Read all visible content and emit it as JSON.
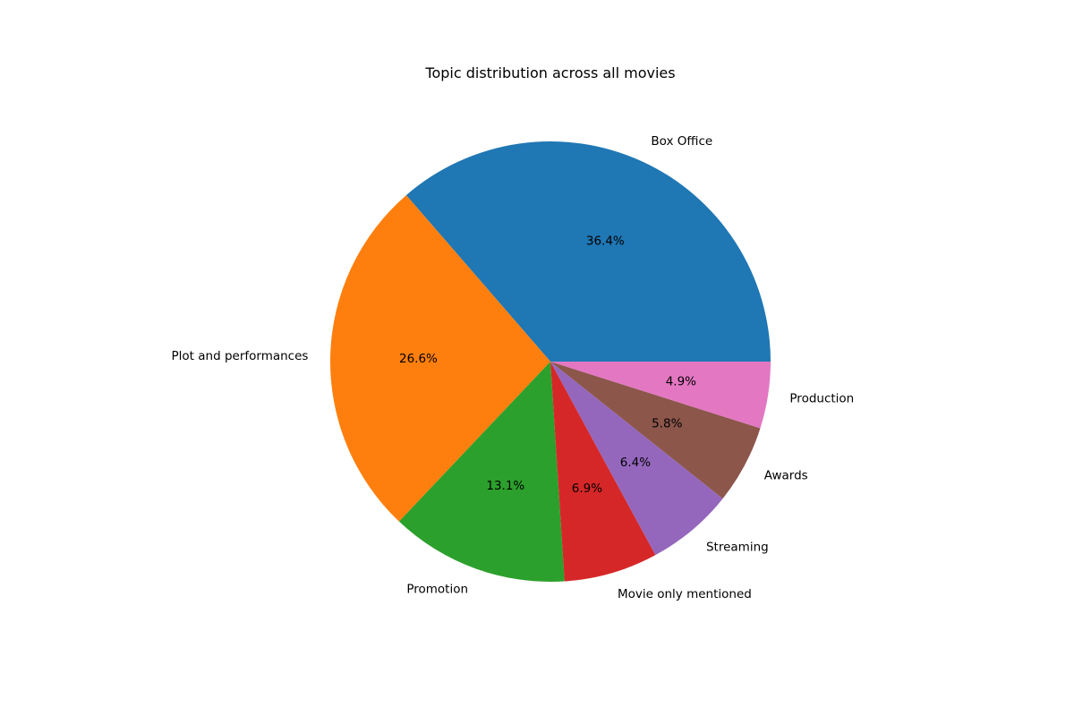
{
  "chart_data": {
    "type": "pie",
    "title": "Topic distribution across all movies",
    "slices": [
      {
        "label": "Box Office",
        "value": 36.4,
        "pct_label": "36.4%",
        "color": "#1f77b4"
      },
      {
        "label": "Plot and performances",
        "value": 26.6,
        "pct_label": "26.6%",
        "color": "#ff7f0e"
      },
      {
        "label": "Promotion",
        "value": 13.1,
        "pct_label": "13.1%",
        "color": "#2ca02c"
      },
      {
        "label": "Movie only mentioned",
        "value": 6.9,
        "pct_label": "6.9%",
        "color": "#d62728"
      },
      {
        "label": "Streaming",
        "value": 6.4,
        "pct_label": "6.4%",
        "color": "#9467bd"
      },
      {
        "label": "Awards",
        "value": 5.8,
        "pct_label": "5.8%",
        "color": "#8c564b"
      },
      {
        "label": "Production",
        "value": 4.9,
        "pct_label": "4.9%",
        "color": "#e377c2"
      }
    ],
    "start_angle": 0,
    "direction": "counterclockwise"
  }
}
